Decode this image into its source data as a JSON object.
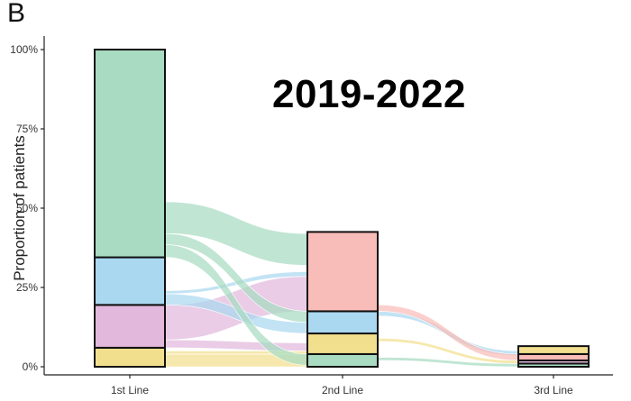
{
  "panel_label": "B",
  "chart_data": {
    "type": "alluvial",
    "annotation": "2019-2022",
    "ylabel": "Proportion of patients",
    "xlabel": "",
    "ylim": [
      0,
      100
    ],
    "yticks": [
      "0%",
      "25%",
      "50%",
      "75%",
      "100%"
    ],
    "ytick_values": [
      0,
      25,
      50,
      75,
      100
    ],
    "categories": [
      "1st Line",
      "2nd Line",
      "3rd Line"
    ],
    "colors": {
      "green": "#a8dbc2",
      "blue": "#aad8f0",
      "pink": "#e2b8dc",
      "yellow": "#f2df8e",
      "salmon": "#f9bdb9"
    },
    "stacks": [
      [
        {
          "color": "yellow",
          "value": 6
        },
        {
          "color": "pink",
          "value": 13.5
        },
        {
          "color": "blue",
          "value": 15
        },
        {
          "color": "green",
          "value": 65.5
        }
      ],
      [
        {
          "color": "green",
          "value": 4
        },
        {
          "color": "yellow",
          "value": 6.5
        },
        {
          "color": "blue",
          "value": 7
        },
        {
          "color": "salmon",
          "value": 25
        }
      ],
      [
        {
          "color": "green",
          "value": 1
        },
        {
          "color": "pink",
          "value": 1
        },
        {
          "color": "salmon",
          "value": 2
        },
        {
          "color": "yellow",
          "value": 2.5
        }
      ]
    ],
    "flows": [
      {
        "from": 0,
        "to": 1,
        "s0": 0,
        "s1": 4,
        "t0": 0,
        "t1": 4,
        "color": "yellow"
      },
      {
        "from": 0,
        "to": 1,
        "s0": 4,
        "s1": 5,
        "t0": 4,
        "t1": 5,
        "color": "yellow"
      },
      {
        "from": 0,
        "to": 1,
        "s0": 6,
        "s1": 8.5,
        "t0": 5,
        "t1": 7.5,
        "color": "pink"
      },
      {
        "from": 0,
        "to": 1,
        "s0": 8.5,
        "s1": 19.5,
        "t0": 17.5,
        "t1": 28.5,
        "color": "pink"
      },
      {
        "from": 0,
        "to": 1,
        "s0": 19.5,
        "s1": 23,
        "t0": 10.5,
        "t1": 14,
        "color": "blue"
      },
      {
        "from": 0,
        "to": 1,
        "s0": 23,
        "s1": 24,
        "t0": 28.5,
        "t1": 30,
        "color": "blue"
      },
      {
        "from": 0,
        "to": 1,
        "s0": 34.5,
        "s1": 38.5,
        "t0": 0.5,
        "t1": 4,
        "color": "green"
      },
      {
        "from": 0,
        "to": 1,
        "s0": 38.5,
        "s1": 42,
        "t0": 14,
        "t1": 17.5,
        "color": "green"
      },
      {
        "from": 0,
        "to": 1,
        "s0": 42,
        "s1": 52,
        "t0": 32,
        "t1": 42,
        "color": "green"
      },
      {
        "from": 1,
        "to": 2,
        "s0": 2,
        "s1": 3,
        "t0": 0,
        "t1": 1,
        "color": "green"
      },
      {
        "from": 1,
        "to": 2,
        "s0": 8,
        "s1": 9,
        "t0": 1,
        "t1": 2,
        "color": "yellow"
      },
      {
        "from": 1,
        "to": 2,
        "s0": 16,
        "s1": 17.5,
        "t0": 3.5,
        "t1": 5,
        "color": "blue"
      },
      {
        "from": 1,
        "to": 2,
        "s0": 17.5,
        "s1": 19.5,
        "t0": 2,
        "t1": 4,
        "color": "salmon"
      }
    ]
  }
}
